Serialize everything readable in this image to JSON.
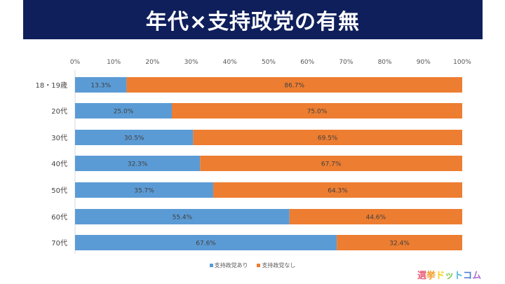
{
  "chart_data": {
    "type": "bar",
    "stacked": true,
    "orientation": "horizontal",
    "title": "年代×支持政党の有無",
    "categories": [
      "18・19歳",
      "20代",
      "30代",
      "40代",
      "50代",
      "60代",
      "70代"
    ],
    "series": [
      {
        "name": "支持政党あり",
        "color": "#5B9BD5",
        "values": [
          13.3,
          25.0,
          30.5,
          32.3,
          35.7,
          55.4,
          67.6
        ]
      },
      {
        "name": "支持政党なし",
        "color": "#ED7D31",
        "values": [
          86.7,
          75.0,
          69.5,
          67.7,
          64.3,
          44.6,
          32.4
        ]
      }
    ],
    "xlim": [
      0,
      100
    ],
    "xticks": [
      "0%",
      "10%",
      "20%",
      "30%",
      "40%",
      "50%",
      "60%",
      "70%",
      "80%",
      "90%",
      "100%"
    ],
    "legend_position": "bottom"
  },
  "logo": {
    "text": "選挙ドットコム",
    "colors": [
      "#e8607a",
      "#f0a030",
      "#f5d020",
      "#7cc850",
      "#48b8e0",
      "#4878d8",
      "#b070d0"
    ]
  }
}
